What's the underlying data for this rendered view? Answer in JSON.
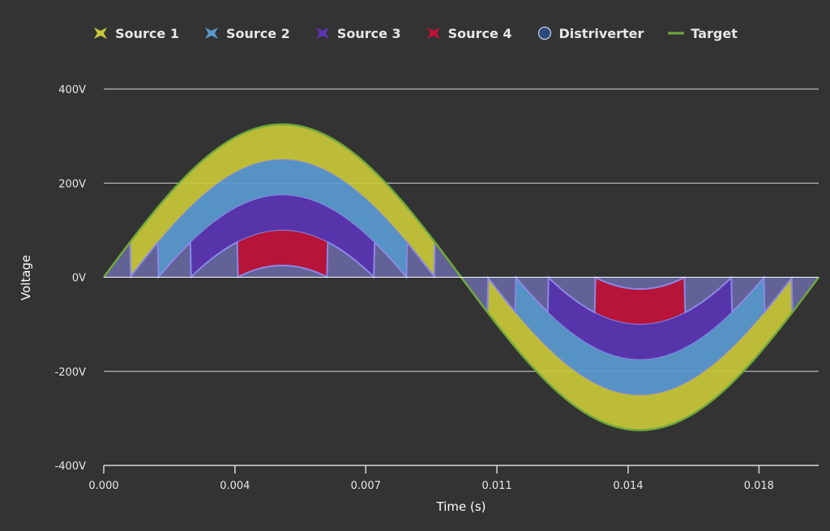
{
  "chart_data": {
    "type": "area",
    "xlabel": "Time (s)",
    "ylabel": "Voltage",
    "xlim": [
      0,
      0.02
    ],
    "ylim": [
      -400,
      400
    ],
    "x_ticks": [
      "0.000",
      "0.004",
      "0.007",
      "0.011",
      "0.014",
      "0.018"
    ],
    "x_tick_values": [
      0,
      0.00367,
      0.00733,
      0.011,
      0.01467,
      0.01833
    ],
    "y_ticks": [
      "400V",
      "200V",
      "0V",
      "-200V",
      "-400V"
    ],
    "y_tick_values": [
      400,
      200,
      0,
      -200,
      -400
    ],
    "grid": true,
    "legend_position": "top-center",
    "frequency_hz": 50,
    "peak_voltage": 325,
    "source_step_voltage": 75,
    "series": [
      {
        "name": "Source 1",
        "color": "#c8c83a",
        "marker": "bowtie"
      },
      {
        "name": "Source 2",
        "color": "#5a9ad0",
        "marker": "bowtie"
      },
      {
        "name": "Source 3",
        "color": "#5a34b4",
        "marker": "bowtie"
      },
      {
        "name": "Source 4",
        "color": "#c2113a",
        "marker": "bowtie"
      },
      {
        "name": "Distriverter",
        "color": "#8a88e8",
        "marker": "circle"
      },
      {
        "name": "Target",
        "color": "#6fa83a",
        "marker": "line"
      }
    ]
  }
}
